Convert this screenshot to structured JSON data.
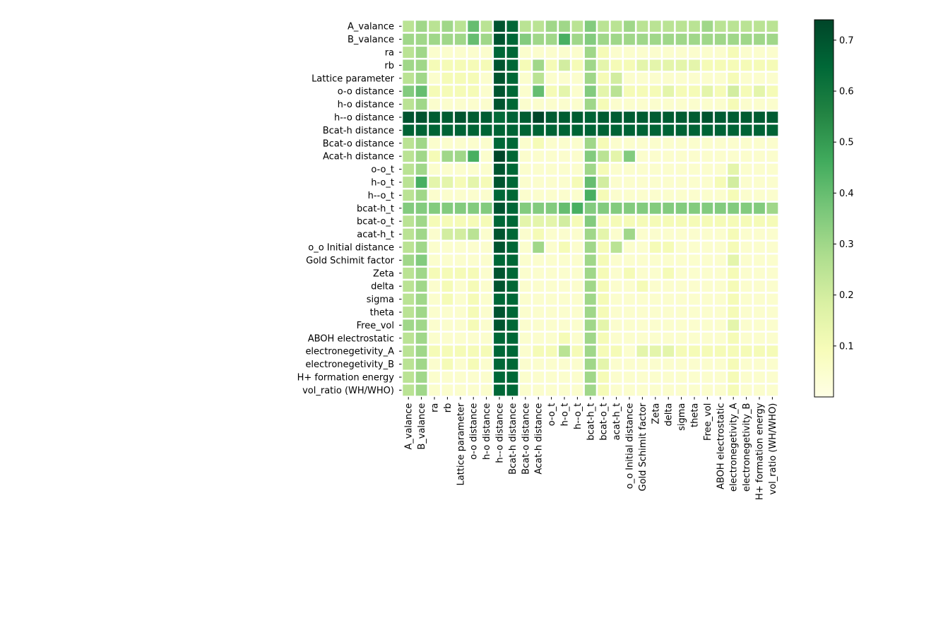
{
  "chart_data": {
    "type": "heatmap",
    "colormap": "YlGn",
    "labels": [
      "A_valance",
      "B_valance",
      "ra",
      "rb",
      "Lattice parameter",
      "o-o distance",
      "h-o distance",
      "h--o distance",
      "Bcat-h distance",
      "Bcat-o distance",
      "Acat-h distance",
      "o-o_t",
      "h-o_t",
      "h--o_t",
      "bcat-h_t",
      "bcat-o_t",
      "acat-h_t",
      "o_o Initial distance",
      "Gold Schimit factor",
      "Zeta",
      "delta",
      "sigma",
      "theta",
      "Free_vol",
      "ABOH electrostatic",
      "electronegetivity_A",
      "electronegetivity_B",
      "H+ formation energy",
      "vol_ratio (WH/WHO)"
    ],
    "vmin": 0.0,
    "vmax": 0.74,
    "colorbar_ticks": [
      0.1,
      0.2,
      0.3,
      0.4,
      0.5,
      0.6,
      0.7
    ],
    "colorbar_tick_labels": [
      "0.1",
      "0.2",
      "0.3",
      "0.4",
      "0.5",
      "0.6",
      "0.7"
    ],
    "values": [
      [
        0.25,
        0.3,
        0.25,
        0.3,
        0.25,
        0.4,
        0.25,
        0.7,
        0.65,
        0.25,
        0.25,
        0.3,
        0.3,
        0.25,
        0.35,
        0.25,
        0.25,
        0.3,
        0.25,
        0.25,
        0.25,
        0.25,
        0.25,
        0.3,
        0.25,
        0.25,
        0.25,
        0.25,
        0.25
      ],
      [
        0.3,
        0.3,
        0.3,
        0.3,
        0.3,
        0.4,
        0.3,
        0.7,
        0.65,
        0.35,
        0.3,
        0.3,
        0.45,
        0.3,
        0.35,
        0.3,
        0.3,
        0.3,
        0.3,
        0.3,
        0.3,
        0.3,
        0.3,
        0.3,
        0.3,
        0.3,
        0.3,
        0.3,
        0.3
      ],
      [
        0.25,
        0.3,
        0.05,
        0.05,
        0.05,
        0.05,
        0.05,
        0.65,
        0.65,
        0.05,
        0.05,
        0.05,
        0.05,
        0.05,
        0.3,
        0.1,
        0.05,
        0.05,
        0.05,
        0.05,
        0.05,
        0.05,
        0.05,
        0.05,
        0.05,
        0.1,
        0.05,
        0.05,
        0.05
      ],
      [
        0.3,
        0.3,
        0.1,
        0.1,
        0.1,
        0.1,
        0.1,
        0.7,
        0.65,
        0.1,
        0.3,
        0.1,
        0.2,
        0.1,
        0.3,
        0.15,
        0.1,
        0.1,
        0.15,
        0.15,
        0.15,
        0.15,
        0.15,
        0.1,
        0.1,
        0.1,
        0.1,
        0.1,
        0.1
      ],
      [
        0.25,
        0.3,
        0.05,
        0.1,
        0.1,
        0.1,
        0.05,
        0.7,
        0.65,
        0.05,
        0.25,
        0.05,
        0.05,
        0.05,
        0.3,
        0.1,
        0.2,
        0.05,
        0.05,
        0.05,
        0.05,
        0.05,
        0.05,
        0.05,
        0.05,
        0.1,
        0.05,
        0.05,
        0.05
      ],
      [
        0.35,
        0.4,
        0.1,
        0.1,
        0.1,
        0.1,
        0.05,
        0.7,
        0.65,
        0.05,
        0.4,
        0.1,
        0.15,
        0.05,
        0.35,
        0.15,
        0.25,
        0.1,
        0.1,
        0.1,
        0.15,
        0.1,
        0.1,
        0.15,
        0.1,
        0.2,
        0.1,
        0.15,
        0.1
      ],
      [
        0.25,
        0.3,
        0.05,
        0.05,
        0.05,
        0.05,
        0.05,
        0.7,
        0.65,
        0.05,
        0.05,
        0.05,
        0.05,
        0.05,
        0.3,
        0.1,
        0.05,
        0.05,
        0.05,
        0.05,
        0.05,
        0.05,
        0.05,
        0.05,
        0.05,
        0.1,
        0.05,
        0.05,
        0.05
      ],
      [
        0.7,
        0.7,
        0.68,
        0.68,
        0.7,
        0.68,
        0.68,
        0.64,
        0.66,
        0.68,
        0.74,
        0.68,
        0.68,
        0.68,
        0.66,
        0.68,
        0.68,
        0.68,
        0.68,
        0.68,
        0.68,
        0.68,
        0.68,
        0.7,
        0.68,
        0.68,
        0.68,
        0.68,
        0.68
      ],
      [
        0.66,
        0.66,
        0.66,
        0.66,
        0.66,
        0.66,
        0.66,
        0.66,
        0.66,
        0.66,
        0.66,
        0.66,
        0.66,
        0.66,
        0.66,
        0.66,
        0.66,
        0.66,
        0.66,
        0.66,
        0.66,
        0.66,
        0.66,
        0.66,
        0.66,
        0.66,
        0.66,
        0.66,
        0.66
      ],
      [
        0.25,
        0.3,
        0.05,
        0.05,
        0.05,
        0.05,
        0.05,
        0.65,
        0.65,
        0.05,
        0.1,
        0.05,
        0.05,
        0.05,
        0.3,
        0.1,
        0.05,
        0.05,
        0.05,
        0.05,
        0.05,
        0.05,
        0.05,
        0.05,
        0.05,
        0.05,
        0.05,
        0.05,
        0.05
      ],
      [
        0.25,
        0.3,
        0.1,
        0.3,
        0.3,
        0.45,
        0.05,
        0.74,
        0.65,
        0.05,
        0.05,
        0.05,
        0.05,
        0.05,
        0.35,
        0.25,
        0.15,
        0.35,
        0.05,
        0.05,
        0.05,
        0.05,
        0.05,
        0.05,
        0.05,
        0.05,
        0.05,
        0.05,
        0.05
      ],
      [
        0.25,
        0.3,
        0.05,
        0.05,
        0.05,
        0.05,
        0.05,
        0.7,
        0.65,
        0.05,
        0.05,
        0.05,
        0.05,
        0.05,
        0.3,
        0.1,
        0.05,
        0.05,
        0.05,
        0.05,
        0.05,
        0.05,
        0.05,
        0.05,
        0.05,
        0.15,
        0.05,
        0.05,
        0.05
      ],
      [
        0.25,
        0.45,
        0.15,
        0.15,
        0.1,
        0.15,
        0.1,
        0.7,
        0.65,
        0.05,
        0.05,
        0.05,
        0.05,
        0.1,
        0.4,
        0.2,
        0.05,
        0.05,
        0.05,
        0.05,
        0.05,
        0.05,
        0.05,
        0.05,
        0.1,
        0.2,
        0.05,
        0.05,
        0.05
      ],
      [
        0.25,
        0.3,
        0.05,
        0.05,
        0.05,
        0.05,
        0.05,
        0.65,
        0.65,
        0.05,
        0.05,
        0.05,
        0.05,
        0.05,
        0.45,
        0.1,
        0.05,
        0.05,
        0.05,
        0.05,
        0.05,
        0.05,
        0.05,
        0.05,
        0.05,
        0.1,
        0.05,
        0.05,
        0.05
      ],
      [
        0.35,
        0.35,
        0.35,
        0.35,
        0.35,
        0.35,
        0.35,
        0.7,
        0.65,
        0.35,
        0.35,
        0.35,
        0.4,
        0.45,
        0.35,
        0.35,
        0.35,
        0.35,
        0.35,
        0.35,
        0.35,
        0.35,
        0.35,
        0.35,
        0.35,
        0.35,
        0.35,
        0.35,
        0.3
      ],
      [
        0.25,
        0.3,
        0.1,
        0.1,
        0.1,
        0.1,
        0.1,
        0.65,
        0.65,
        0.15,
        0.15,
        0.15,
        0.2,
        0.1,
        0.35,
        0.1,
        0.1,
        0.1,
        0.1,
        0.1,
        0.1,
        0.1,
        0.1,
        0.1,
        0.1,
        0.1,
        0.1,
        0.1,
        0.1
      ],
      [
        0.25,
        0.3,
        0.05,
        0.2,
        0.2,
        0.25,
        0.05,
        0.7,
        0.65,
        0.05,
        0.1,
        0.05,
        0.05,
        0.05,
        0.3,
        0.15,
        0.05,
        0.3,
        0.05,
        0.05,
        0.05,
        0.05,
        0.05,
        0.05,
        0.05,
        0.1,
        0.05,
        0.05,
        0.05
      ],
      [
        0.25,
        0.3,
        0.05,
        0.05,
        0.05,
        0.05,
        0.05,
        0.7,
        0.65,
        0.05,
        0.3,
        0.05,
        0.1,
        0.05,
        0.3,
        0.1,
        0.25,
        0.05,
        0.05,
        0.1,
        0.1,
        0.05,
        0.05,
        0.05,
        0.05,
        0.1,
        0.05,
        0.05,
        0.05
      ],
      [
        0.3,
        0.35,
        0.05,
        0.05,
        0.05,
        0.05,
        0.05,
        0.65,
        0.65,
        0.05,
        0.05,
        0.05,
        0.05,
        0.05,
        0.3,
        0.1,
        0.05,
        0.05,
        0.05,
        0.05,
        0.05,
        0.05,
        0.05,
        0.05,
        0.05,
        0.15,
        0.05,
        0.05,
        0.05
      ],
      [
        0.25,
        0.3,
        0.1,
        0.1,
        0.1,
        0.1,
        0.05,
        0.7,
        0.65,
        0.05,
        0.05,
        0.05,
        0.05,
        0.05,
        0.3,
        0.1,
        0.05,
        0.1,
        0.05,
        0.05,
        0.1,
        0.05,
        0.05,
        0.05,
        0.05,
        0.1,
        0.05,
        0.05,
        0.05
      ],
      [
        0.25,
        0.3,
        0.05,
        0.1,
        0.05,
        0.1,
        0.05,
        0.7,
        0.65,
        0.05,
        0.05,
        0.05,
        0.05,
        0.05,
        0.3,
        0.1,
        0.05,
        0.05,
        0.1,
        0.05,
        0.05,
        0.05,
        0.05,
        0.05,
        0.05,
        0.1,
        0.05,
        0.05,
        0.05
      ],
      [
        0.25,
        0.3,
        0.05,
        0.1,
        0.05,
        0.1,
        0.05,
        0.65,
        0.65,
        0.05,
        0.05,
        0.05,
        0.05,
        0.05,
        0.3,
        0.1,
        0.05,
        0.05,
        0.05,
        0.05,
        0.05,
        0.05,
        0.05,
        0.05,
        0.05,
        0.1,
        0.05,
        0.05,
        0.05
      ],
      [
        0.25,
        0.3,
        0.05,
        0.05,
        0.05,
        0.1,
        0.05,
        0.7,
        0.65,
        0.05,
        0.05,
        0.05,
        0.05,
        0.05,
        0.3,
        0.1,
        0.05,
        0.05,
        0.05,
        0.05,
        0.05,
        0.05,
        0.05,
        0.05,
        0.05,
        0.1,
        0.05,
        0.05,
        0.05
      ],
      [
        0.3,
        0.3,
        0.05,
        0.05,
        0.05,
        0.1,
        0.05,
        0.7,
        0.65,
        0.05,
        0.05,
        0.05,
        0.05,
        0.05,
        0.3,
        0.15,
        0.05,
        0.05,
        0.05,
        0.05,
        0.05,
        0.05,
        0.05,
        0.05,
        0.05,
        0.15,
        0.05,
        0.05,
        0.05
      ],
      [
        0.25,
        0.3,
        0.05,
        0.05,
        0.05,
        0.05,
        0.05,
        0.65,
        0.65,
        0.05,
        0.05,
        0.05,
        0.1,
        0.05,
        0.3,
        0.1,
        0.05,
        0.05,
        0.05,
        0.05,
        0.05,
        0.05,
        0.05,
        0.05,
        0.05,
        0.1,
        0.05,
        0.05,
        0.05
      ],
      [
        0.25,
        0.3,
        0.1,
        0.1,
        0.1,
        0.1,
        0.1,
        0.65,
        0.65,
        0.05,
        0.1,
        0.1,
        0.25,
        0.1,
        0.3,
        0.1,
        0.1,
        0.05,
        0.15,
        0.15,
        0.15,
        0.1,
        0.1,
        0.1,
        0.1,
        0.1,
        0.1,
        0.1,
        0.1
      ],
      [
        0.25,
        0.3,
        0.05,
        0.1,
        0.05,
        0.1,
        0.05,
        0.65,
        0.65,
        0.05,
        0.05,
        0.05,
        0.05,
        0.05,
        0.3,
        0.15,
        0.05,
        0.05,
        0.05,
        0.05,
        0.05,
        0.05,
        0.05,
        0.05,
        0.05,
        0.1,
        0.05,
        0.05,
        0.05
      ],
      [
        0.25,
        0.3,
        0.05,
        0.05,
        0.05,
        0.05,
        0.05,
        0.65,
        0.65,
        0.05,
        0.05,
        0.05,
        0.05,
        0.05,
        0.3,
        0.1,
        0.05,
        0.05,
        0.05,
        0.05,
        0.05,
        0.05,
        0.05,
        0.05,
        0.05,
        0.1,
        0.05,
        0.05,
        0.05
      ],
      [
        0.25,
        0.3,
        0.05,
        0.05,
        0.05,
        0.05,
        0.05,
        0.65,
        0.65,
        0.05,
        0.05,
        0.05,
        0.05,
        0.05,
        0.3,
        0.1,
        0.05,
        0.05,
        0.05,
        0.05,
        0.05,
        0.05,
        0.05,
        0.05,
        0.05,
        0.1,
        0.05,
        0.05,
        0.05
      ]
    ]
  }
}
